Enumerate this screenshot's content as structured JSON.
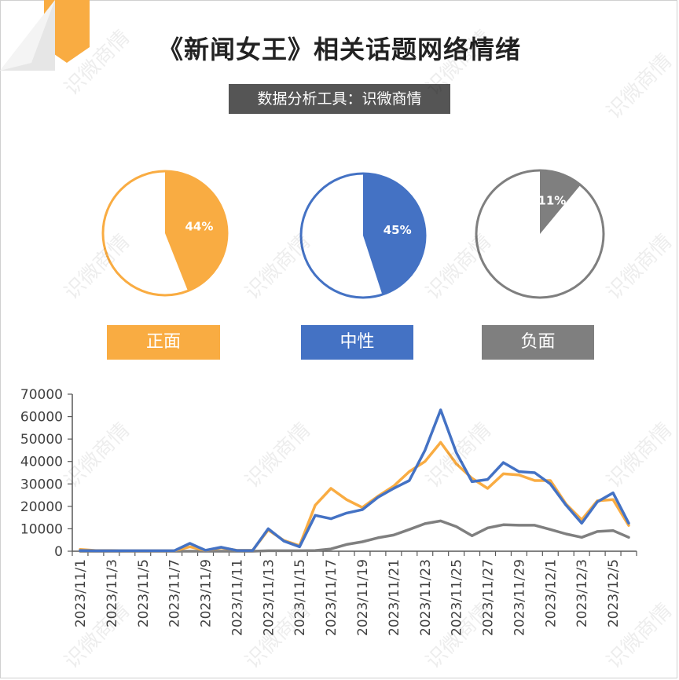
{
  "title": "《新闻女王》相关话题网络情绪",
  "subtitle": "数据分析工具：识微商情",
  "watermark": "识微商情",
  "colors": {
    "positive": "#F9AC42",
    "neutral": "#4472C4",
    "negative": "#7F7F7F",
    "accent": "#F9AC42"
  },
  "legend": [
    {
      "label": "正面",
      "color": "#F9AC42"
    },
    {
      "label": "中性",
      "color": "#4472C4"
    },
    {
      "label": "负面",
      "color": "#7F7F7F"
    }
  ],
  "chart_data": [
    {
      "type": "pie",
      "label": "正面",
      "slices": [
        {
          "label": "44%",
          "value": 44
        },
        {
          "label": "",
          "value": 56
        }
      ],
      "color": "#F9AC42"
    },
    {
      "type": "pie",
      "label": "中性",
      "slices": [
        {
          "label": "45%",
          "value": 45
        },
        {
          "label": "",
          "value": 55
        }
      ],
      "color": "#4472C4"
    },
    {
      "type": "pie",
      "label": "负面",
      "slices": [
        {
          "label": "11%",
          "value": 11
        },
        {
          "label": "",
          "value": 89
        }
      ],
      "color": "#7F7F7F"
    },
    {
      "type": "line",
      "title": "",
      "xlabel": "",
      "ylabel": "",
      "ylim": [
        0,
        70000
      ],
      "yticks": [
        0,
        10000,
        20000,
        30000,
        40000,
        50000,
        60000,
        70000
      ],
      "x": [
        "2023/11/1",
        "2023/11/2",
        "2023/11/3",
        "2023/11/4",
        "2023/11/5",
        "2023/11/6",
        "2023/11/7",
        "2023/11/8",
        "2023/11/9",
        "2023/11/10",
        "2023/11/11",
        "2023/11/12",
        "2023/11/13",
        "2023/11/14",
        "2023/11/15",
        "2023/11/16",
        "2023/11/17",
        "2023/11/18",
        "2023/11/19",
        "2023/11/20",
        "2023/11/21",
        "2023/11/22",
        "2023/11/23",
        "2023/11/24",
        "2023/11/25",
        "2023/11/26",
        "2023/11/27",
        "2023/11/28",
        "2023/11/29",
        "2023/11/30",
        "2023/12/1",
        "2023/12/2",
        "2023/12/3",
        "2023/12/4",
        "2023/12/5",
        "2023/12/6"
      ],
      "xticklabels": [
        "2023/11/1",
        "2023/11/3",
        "2023/11/5",
        "2023/11/7",
        "2023/11/9",
        "2023/11/11",
        "2023/11/13",
        "2023/11/15",
        "2023/11/17",
        "2023/11/19",
        "2023/11/21",
        "2023/11/23",
        "2023/11/25",
        "2023/11/27",
        "2023/11/29",
        "2023/12/1",
        "2023/12/3",
        "2023/12/5"
      ],
      "series": [
        {
          "name": "正面",
          "color": "#F9AC42",
          "values": [
            800,
            300,
            300,
            200,
            200,
            200,
            200,
            2000,
            300,
            1500,
            400,
            400,
            9500,
            4800,
            2500,
            20500,
            28000,
            23000,
            19500,
            24500,
            29000,
            35500,
            40000,
            48500,
            39000,
            32500,
            28000,
            34500,
            34000,
            31500,
            31500,
            21000,
            14000,
            22500,
            23000,
            11500
          ]
        },
        {
          "name": "中性",
          "color": "#4472C4",
          "values": [
            300,
            200,
            200,
            200,
            200,
            200,
            200,
            3500,
            400,
            1800,
            300,
            300,
            10000,
            4500,
            2000,
            16000,
            14500,
            17000,
            18500,
            24000,
            28000,
            31500,
            45000,
            63000,
            44000,
            31000,
            32000,
            39500,
            35500,
            35000,
            30000,
            20500,
            12500,
            22000,
            26000,
            12500
          ]
        },
        {
          "name": "负面",
          "color": "#7F7F7F",
          "values": [
            0,
            0,
            0,
            0,
            0,
            0,
            0,
            0,
            0,
            0,
            0,
            0,
            200,
            200,
            200,
            300,
            1000,
            3000,
            4200,
            6000,
            7200,
            9700,
            12300,
            13500,
            11000,
            6900,
            10400,
            11800,
            11600,
            11600,
            9700,
            7700,
            6200,
            8800,
            9200,
            6200
          ]
        }
      ]
    }
  ]
}
